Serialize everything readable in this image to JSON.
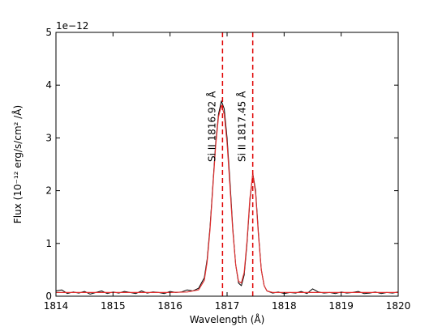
{
  "chart_data": {
    "type": "line",
    "xlabel": "Wavelength (Å)",
    "ylabel": "Flux (10⁻¹² erg/s/cm² /Å)",
    "xlim": [
      1814,
      1820
    ],
    "ylim": [
      0,
      5
    ],
    "y_offset_label": "1e−12",
    "x_ticks": [
      "1814",
      "1815",
      "1816",
      "1817",
      "1818",
      "1819",
      "1820"
    ],
    "y_ticks": [
      "0",
      "1",
      "2",
      "3",
      "4",
      "5"
    ],
    "grid": false,
    "colors": {
      "observed": "#000000",
      "model": "#e03030",
      "marker": "#e00000"
    },
    "vlines": [
      1816.92,
      1817.45
    ],
    "annotations": [
      {
        "text": "Si II   1816.92 Å",
        "x": 1816.92
      },
      {
        "text": "Si II   1817.45 Å",
        "x": 1817.45
      }
    ],
    "series": [
      {
        "x": [
          1814.0,
          1814.1,
          1814.2,
          1814.3,
          1814.4,
          1814.5,
          1814.6,
          1814.7,
          1814.8,
          1814.9,
          1815.0,
          1815.1,
          1815.2,
          1815.3,
          1815.4,
          1815.5,
          1815.6,
          1815.7,
          1815.8,
          1815.9,
          1816.0,
          1816.1,
          1816.2,
          1816.3,
          1816.4,
          1816.5,
          1816.6,
          1816.65,
          1816.7,
          1816.75,
          1816.8,
          1816.85,
          1816.9,
          1816.95,
          1817.0,
          1817.05,
          1817.1,
          1817.15,
          1817.2,
          1817.25,
          1817.3,
          1817.35,
          1817.4,
          1817.45,
          1817.5,
          1817.55,
          1817.6,
          1817.65,
          1817.7,
          1817.8,
          1817.9,
          1818.0,
          1818.1,
          1818.2,
          1818.3,
          1818.4,
          1818.5,
          1818.6,
          1818.7,
          1818.8,
          1818.9,
          1819.0,
          1819.1,
          1819.2,
          1819.3,
          1819.4,
          1819.5,
          1819.6,
          1819.7,
          1819.8,
          1819.9,
          1820.0
        ],
        "y": [
          0.1,
          0.12,
          0.05,
          0.08,
          0.06,
          0.09,
          0.04,
          0.07,
          0.1,
          0.05,
          0.08,
          0.06,
          0.09,
          0.07,
          0.05,
          0.1,
          0.06,
          0.08,
          0.07,
          0.05,
          0.09,
          0.07,
          0.08,
          0.12,
          0.1,
          0.15,
          0.35,
          0.7,
          1.3,
          2.1,
          2.9,
          3.45,
          3.7,
          3.55,
          3.0,
          2.2,
          1.3,
          0.6,
          0.25,
          0.2,
          0.4,
          1.0,
          1.8,
          2.33,
          2.0,
          1.2,
          0.5,
          0.2,
          0.1,
          0.06,
          0.08,
          0.05,
          0.07,
          0.06,
          0.09,
          0.05,
          0.14,
          0.08,
          0.06,
          0.07,
          0.05,
          0.08,
          0.06,
          0.07,
          0.09,
          0.05,
          0.06,
          0.08,
          0.05,
          0.07,
          0.06,
          0.08
        ]
      },
      {
        "x": [
          1814.0,
          1814.5,
          1815.0,
          1815.5,
          1816.0,
          1816.3,
          1816.5,
          1816.6,
          1816.65,
          1816.7,
          1816.75,
          1816.8,
          1816.85,
          1816.9,
          1816.95,
          1817.0,
          1817.05,
          1817.1,
          1817.15,
          1817.2,
          1817.25,
          1817.3,
          1817.35,
          1817.4,
          1817.45,
          1817.5,
          1817.55,
          1817.6,
          1817.65,
          1817.7,
          1817.8,
          1818.0,
          1818.5,
          1819.0,
          1819.5,
          1820.0
        ],
        "y": [
          0.07,
          0.07,
          0.07,
          0.07,
          0.07,
          0.08,
          0.12,
          0.3,
          0.65,
          1.25,
          2.05,
          2.85,
          3.4,
          3.62,
          3.45,
          2.9,
          2.1,
          1.25,
          0.6,
          0.28,
          0.25,
          0.45,
          1.05,
          1.85,
          2.32,
          1.95,
          1.15,
          0.5,
          0.2,
          0.1,
          0.07,
          0.07,
          0.07,
          0.07,
          0.07,
          0.07
        ]
      }
    ]
  }
}
